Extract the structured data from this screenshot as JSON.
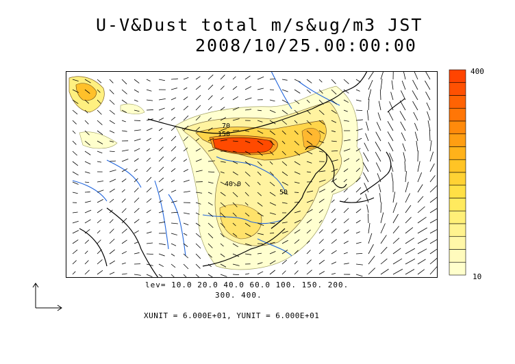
{
  "title": {
    "line1": "U-V&Dust total m/s&ug/m3 JST",
    "line2": "2008/10/25.00:00:00"
  },
  "levels": {
    "line1": "lev= 10.0 20.0 40.0 60.0 100. 150. 200.",
    "line2": "300. 400.",
    "values": [
      10,
      20,
      40,
      60,
      100,
      150,
      200,
      300,
      400
    ]
  },
  "units_text": "XUNIT = 6.000E+01, YUNIT = 6.000E+01",
  "colorbar": {
    "max_label": "400",
    "min_label": "10",
    "colors": [
      "#ffffcc",
      "#fffbbd",
      "#fff7a8",
      "#fff38f",
      "#fff078",
      "#ffea5e",
      "#ffe045",
      "#ffd234",
      "#ffc425",
      "#ffb21a",
      "#ff9e12",
      "#ff8a0b",
      "#ff7606",
      "#ff6303",
      "#ff5102",
      "#ff4400"
    ]
  },
  "map_labels": [
    "70",
    "150",
    "40.0",
    "50"
  ],
  "colors": {
    "dust_light": "#ffffcc",
    "dust_high": "#ff4400",
    "rivers": "#1f64dc",
    "coast": "#000000"
  }
}
